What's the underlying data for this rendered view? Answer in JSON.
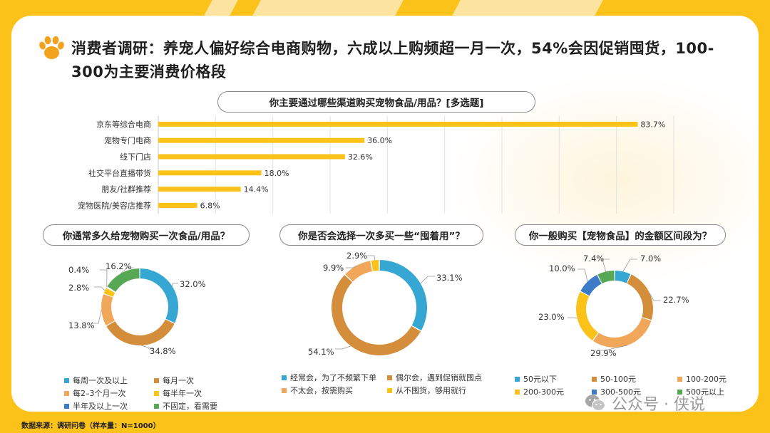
{
  "title": "消费者调研：养宠人偏好综合电商购物，六成以上购频超一月一次，54%会因促销囤货，100-300为主要消费价格段",
  "source": "数据来源：调研问卷（样本量：N=1000）",
  "watermark": "公众号 · 侠说",
  "colors": {
    "bar": "#fbc21a",
    "blue": "#36a6d2",
    "orange": "#d38d3b",
    "light_orange": "#f0a759",
    "yellow": "#fbc21a",
    "royal_blue": "#3b7bc8",
    "green": "#57a854"
  },
  "chart_data": [
    {
      "type": "bar",
      "title": "你主要通过哪些渠道购买宠物食品/用品？[多选题]",
      "categories": [
        "京东等综合电商",
        "宠物专门电商",
        "线下门店",
        "社交平台直播带货",
        "朋友/社群推荐",
        "宠物医院/美容店推荐"
      ],
      "values": [
        83.7,
        36.0,
        32.6,
        18.0,
        14.4,
        6.8
      ],
      "value_labels": [
        "83.7%",
        "36.0%",
        "32.6%",
        "18.0%",
        "14.4%",
        "6.8%"
      ],
      "xlim": [
        0,
        90
      ],
      "grid": true
    },
    {
      "type": "pie",
      "title": "你通常多久给宠物购买一次食品/用品？",
      "categories": [
        "每周一次及以上",
        "每月一次",
        "每2-3个月一次",
        "每半年一次",
        "半年及以上一次",
        "不固定，看需要"
      ],
      "values": [
        32.0,
        34.8,
        13.8,
        2.8,
        0.4,
        16.2
      ],
      "value_labels": [
        "32.0%",
        "34.8%",
        "13.8%",
        "2.8%",
        "0.4%",
        "16.2%"
      ],
      "legend_labels": [
        "每周一次及以上",
        "每月一次",
        "每2–3个月一次",
        "每半年一次",
        "半年及以上一次",
        "不固定，看需要"
      ],
      "colors": [
        "#36a6d2",
        "#d38d3b",
        "#f0a759",
        "#fbc21a",
        "#3b7bc8",
        "#57a854"
      ]
    },
    {
      "type": "pie",
      "title": "你是否会选择一次多买一些“囤着用”？",
      "categories": [
        "经常会，为了不频繁下单",
        "偶尔会，遇到促销就囤点",
        "不太会，按需购买",
        "从不囤货，够用就行"
      ],
      "values": [
        33.1,
        54.1,
        9.9,
        2.9
      ],
      "value_labels": [
        "33.1%",
        "54.1%",
        "9.9%",
        "2.9%"
      ],
      "colors": [
        "#36a6d2",
        "#d38d3b",
        "#f0a759",
        "#fbc21a"
      ]
    },
    {
      "type": "pie",
      "title": "你一般购买【宠物食品】的金额区间段为？",
      "categories": [
        "50元以下",
        "50-100元",
        "100-200元",
        "200-300元",
        "300-500元",
        "500元以上"
      ],
      "values": [
        7.0,
        22.7,
        29.9,
        23.0,
        10.0,
        7.4
      ],
      "value_labels": [
        "7.0%",
        "22.7%",
        "29.9%",
        "23.0%",
        "10.0%",
        "7.4%"
      ],
      "colors": [
        "#36a6d2",
        "#d38d3b",
        "#f0a759",
        "#fbc21a",
        "#3b7bc8",
        "#57a854"
      ]
    }
  ]
}
